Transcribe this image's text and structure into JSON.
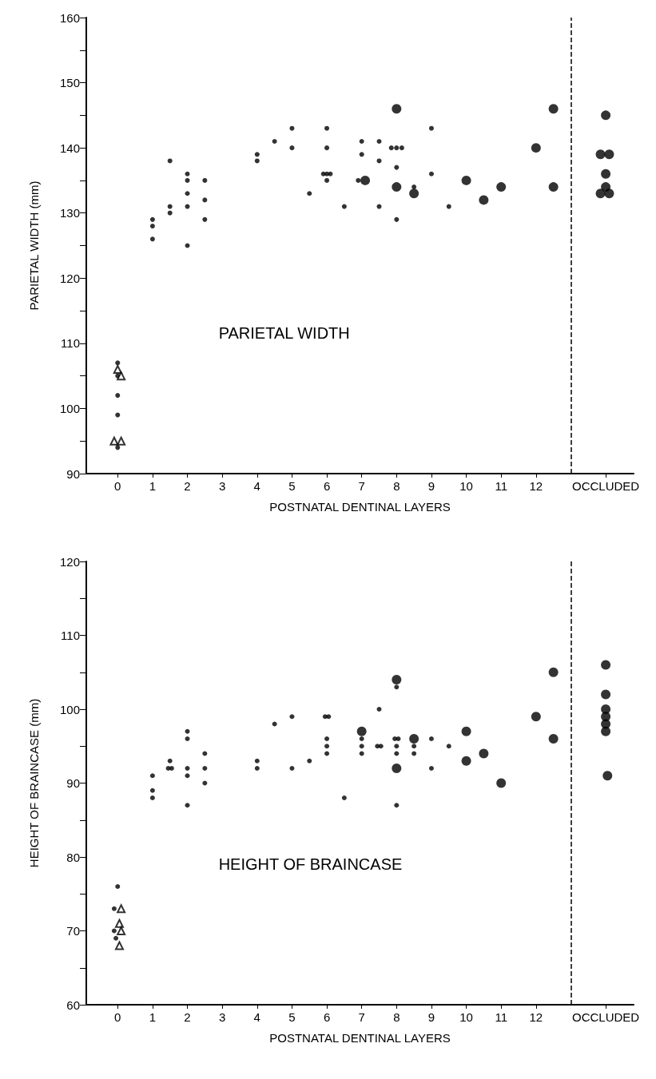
{
  "chart_data": [
    {
      "type": "scatter",
      "ylabel": "PARIETAL WIDTH (mm)",
      "xlabel": "POSTNATAL DENTINAL LAYERS",
      "annotations": [
        "PARIETAL WIDTH"
      ],
      "xlim": [
        -0.9,
        14.8
      ],
      "ylim": [
        90,
        160
      ],
      "xticks": [
        0,
        1,
        2,
        3,
        4,
        5,
        6,
        7,
        8,
        9,
        10,
        11,
        12,
        {
          "value": 14,
          "label": "OCCLUDED"
        }
      ],
      "yticks": [
        90,
        {
          "value": 95,
          "label": null
        },
        100,
        {
          "value": 105,
          "label": null
        },
        110,
        {
          "value": 115,
          "label": null
        },
        120,
        {
          "value": 125,
          "label": null
        },
        130,
        {
          "value": 135,
          "label": null
        },
        140,
        {
          "value": 145,
          "label": null
        },
        150,
        {
          "value": 155,
          "label": null
        },
        160
      ],
      "grid": false,
      "ref_lines": [
        {
          "axis": "x",
          "value": 13,
          "line_style": "dashed",
          "color": "#000000"
        }
      ],
      "series": [
        {
          "marker": "circle",
          "color": "#000000",
          "x": [
            0,
            0,
            0,
            0,
            0,
            1,
            1,
            1,
            1.5,
            1.5,
            1.5,
            2,
            2,
            2,
            2,
            2,
            2.5,
            2.5,
            2.5,
            4,
            4,
            4.5,
            5,
            5,
            5.5,
            6,
            6,
            5.9,
            6,
            6.1,
            6,
            6.5,
            6.9,
            7,
            7,
            7.5,
            7.5,
            7.5,
            7.85,
            8,
            8.15,
            8,
            8,
            8.5,
            9,
            9,
            9.5
          ],
          "values": [
            107,
            105,
            102,
            99,
            94,
            129,
            128,
            126,
            138,
            131,
            130,
            136,
            135,
            133,
            131,
            125,
            135,
            132,
            129,
            139,
            138,
            141,
            143,
            140,
            133,
            143,
            140,
            136,
            136,
            136,
            135,
            131,
            135,
            141,
            139,
            141,
            138,
            131,
            140,
            140,
            140,
            137,
            129,
            134,
            143,
            136,
            131
          ]
        },
        {
          "type": "bubble",
          "marker": "circle",
          "color": "#000000",
          "x": [
            7.1,
            8,
            8,
            8.5,
            10,
            10.5,
            11,
            12,
            12.5,
            12.5,
            14,
            13.85,
            14.1,
            14,
            14,
            13.85,
            14.1
          ],
          "values": [
            135,
            146,
            134,
            133,
            135,
            132,
            134,
            140,
            146,
            134,
            145,
            139,
            139,
            136,
            134,
            133,
            133
          ],
          "sizes": [
            1,
            1,
            1,
            1,
            1,
            1,
            1,
            1,
            1,
            1,
            1,
            1,
            1,
            1,
            1,
            1,
            1
          ]
        },
        {
          "marker": "triangle",
          "color": "#000000",
          "x": [
            0,
            0.1,
            -0.1,
            0.1
          ],
          "values": [
            106,
            105,
            95,
            95
          ]
        }
      ]
    },
    {
      "type": "scatter",
      "ylabel": "HEIGHT OF BRAINCASE (mm)",
      "xlabel": "POSTNATAL DENTINAL LAYERS",
      "annotations": [
        "HEIGHT OF BRAINCASE"
      ],
      "xlim": [
        -0.9,
        14.8
      ],
      "ylim": [
        60,
        120
      ],
      "xticks": [
        0,
        1,
        2,
        3,
        4,
        5,
        6,
        7,
        8,
        9,
        10,
        11,
        12,
        {
          "value": 14,
          "label": "OCCLUDED"
        }
      ],
      "yticks": [
        60,
        {
          "value": 65,
          "label": null
        },
        70,
        {
          "value": 75,
          "label": null
        },
        80,
        {
          "value": 85,
          "label": null
        },
        90,
        {
          "value": 95,
          "label": null
        },
        100,
        {
          "value": 105,
          "label": null
        },
        110,
        {
          "value": 115,
          "label": null
        },
        120
      ],
      "grid": false,
      "ref_lines": [
        {
          "axis": "x",
          "value": 13,
          "line_style": "dashed",
          "color": "#000000"
        }
      ],
      "series": [
        {
          "marker": "circle",
          "color": "#000000",
          "x": [
            0,
            -0.1,
            -0.1,
            -0.05,
            1,
            1,
            1,
            1.5,
            1.45,
            1.55,
            2,
            2,
            2,
            2,
            2,
            2.5,
            2.5,
            2.5,
            4,
            4,
            4.5,
            5,
            5,
            5.5,
            5.95,
            6.05,
            6,
            6,
            6,
            6.5,
            7,
            7,
            7,
            7.5,
            7.45,
            7.55,
            8,
            7.95,
            8.05,
            8,
            8,
            8,
            8.5,
            8.5,
            9,
            9,
            9.5
          ],
          "values": [
            76,
            73,
            70,
            69,
            91,
            89,
            88,
            93,
            92,
            92,
            97,
            96,
            92,
            91,
            87,
            94,
            92,
            90,
            93,
            92,
            98,
            99,
            92,
            93,
            99,
            99,
            96,
            95,
            94,
            88,
            96,
            95,
            94,
            100,
            95,
            95,
            103,
            96,
            96,
            95,
            94,
            87,
            95,
            94,
            96,
            92,
            95
          ]
        },
        {
          "type": "bubble",
          "marker": "circle",
          "color": "#000000",
          "x": [
            7,
            8,
            8,
            8.5,
            10,
            10,
            10.5,
            11,
            12,
            12.5,
            12.5,
            14,
            14,
            14,
            14,
            14,
            14,
            14.05
          ],
          "values": [
            97,
            104,
            92,
            96,
            97,
            93,
            94,
            90,
            99,
            105,
            96,
            106,
            102,
            100,
            99,
            98,
            97,
            91
          ],
          "sizes": [
            1,
            1,
            1,
            1,
            1,
            1,
            1,
            1,
            1,
            1,
            1,
            1,
            1,
            1,
            1,
            1,
            1,
            1
          ]
        },
        {
          "marker": "triangle",
          "color": "#000000",
          "x": [
            0.1,
            0.05,
            0.1,
            0.05
          ],
          "values": [
            73,
            71,
            70,
            68
          ]
        }
      ]
    }
  ]
}
